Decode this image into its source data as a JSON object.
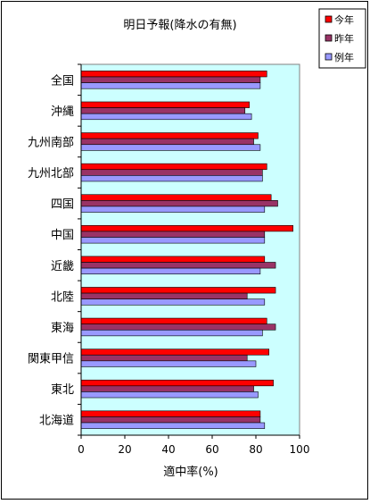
{
  "chart_data": {
    "type": "bar",
    "orientation": "horizontal",
    "title": "明日予報(降水の有無)",
    "xlabel": "適中率(%)",
    "ylabel": "",
    "xlim": [
      0,
      100
    ],
    "x_ticks": [
      0,
      20,
      40,
      60,
      80,
      100
    ],
    "grid": false,
    "legend_position": "top-right",
    "plot_background": "#ccffff",
    "categories": [
      "全国",
      "沖縄",
      "九州南部",
      "九州北部",
      "四国",
      "中国",
      "近畿",
      "北陸",
      "東海",
      "関東甲信",
      "東北",
      "北海道"
    ],
    "series": [
      {
        "name": "今年",
        "color": "#ff0000",
        "values": [
          85,
          77,
          81,
          85,
          87,
          97,
          84,
          89,
          85,
          86,
          88,
          82
        ]
      },
      {
        "name": "昨年",
        "color": "#993366",
        "values": [
          82,
          75,
          79,
          83,
          90,
          84,
          89,
          76,
          89,
          76,
          79,
          82
        ]
      },
      {
        "name": "例年",
        "color": "#9999ff",
        "values": [
          82,
          78,
          82,
          83,
          84,
          84,
          82,
          84,
          83,
          80,
          81,
          84
        ]
      }
    ]
  }
}
